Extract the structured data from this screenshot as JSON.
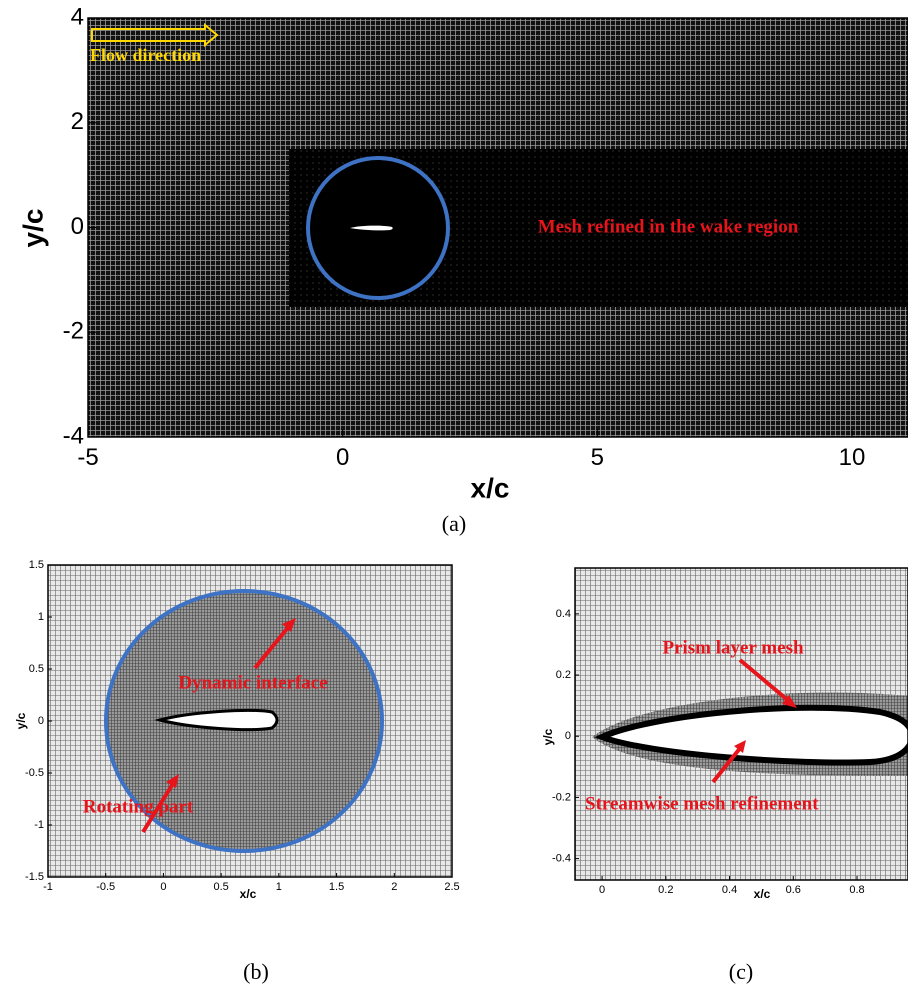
{
  "panels": [
    {
      "caption": "(a)",
      "x_label": "x/c",
      "y_label": "y/c",
      "xlim": [
        -5,
        11.1
      ],
      "ylim": [
        -4,
        4
      ],
      "xticks": [
        -5,
        0,
        5,
        10
      ],
      "yticks": [
        -4,
        -2,
        0,
        2,
        4
      ],
      "annotations": [
        "Flow direction",
        "Mesh refined in the wake region"
      ]
    },
    {
      "caption": "(b)",
      "x_label": "x/c",
      "y_label": "y/c",
      "xlim": [
        -1,
        2.5
      ],
      "ylim": [
        -1.5,
        1.5
      ],
      "xticks": [
        -1,
        -0.5,
        0,
        0.5,
        1,
        1.5,
        2,
        2.5
      ],
      "yticks": [
        -1.5,
        -1,
        -0.5,
        0,
        0.5,
        1,
        1.5
      ],
      "annotations": [
        "Dynamic interface",
        "Rotating part"
      ]
    },
    {
      "caption": "(c)",
      "x_label": "x/c",
      "y_label": "y/c",
      "xlim": [
        -0.085,
        0.96
      ],
      "ylim": [
        -0.47,
        0.55
      ],
      "xticks": [
        0,
        0.2,
        0.4,
        0.6,
        0.8
      ],
      "yticks": [
        -0.4,
        -0.2,
        0,
        0.2,
        0.4
      ],
      "annotations": [
        "Prism layer mesh",
        "Streamwise mesh refinement"
      ]
    }
  ]
}
